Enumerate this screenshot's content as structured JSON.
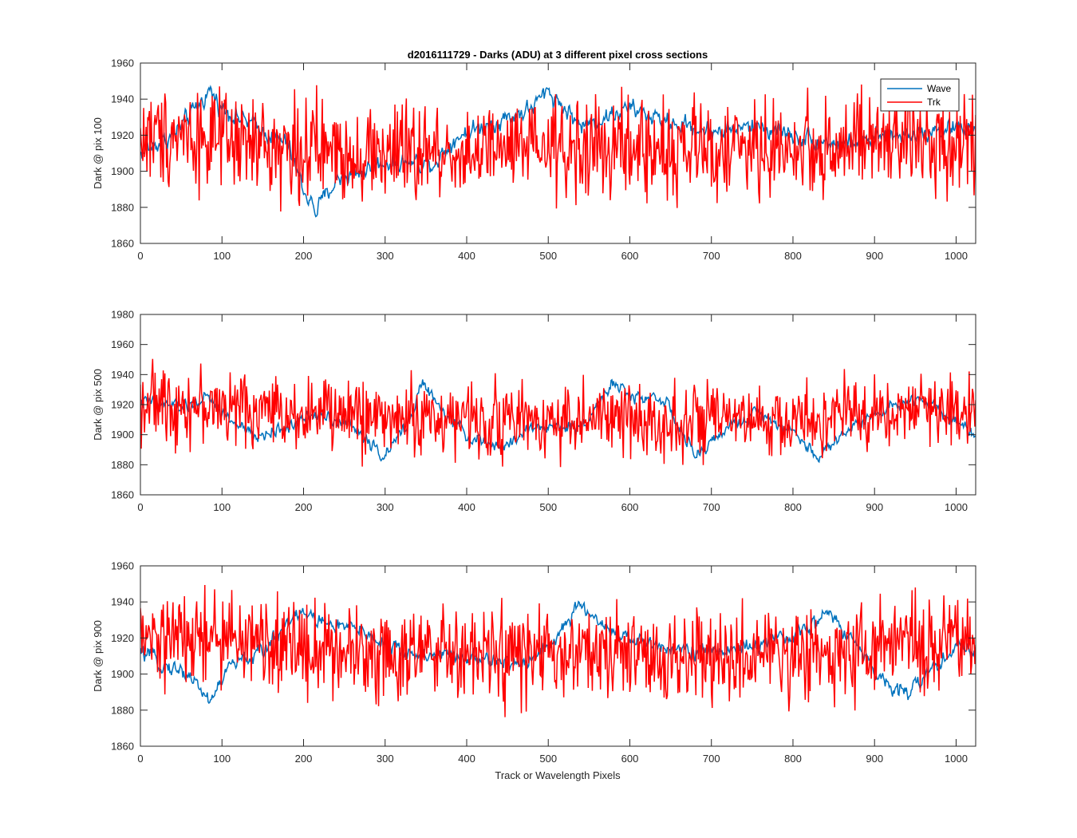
{
  "title": "d2016111729 - Darks (ADU) at 3 different pixel cross sections",
  "xlabel": "Track or Wavelength Pixels",
  "legend": {
    "location": "top-right",
    "entries": [
      {
        "name": "Wave",
        "color": "#0072BD"
      },
      {
        "name": "Trk",
        "color": "#FF0000"
      }
    ]
  },
  "chart_data": [
    {
      "type": "line",
      "ylabel": "Dark @ pix 100",
      "xlim": [
        0,
        1024
      ],
      "ylim": [
        1860,
        1960
      ],
      "xticks": [
        0,
        100,
        200,
        300,
        400,
        500,
        600,
        700,
        800,
        900,
        1000
      ],
      "yticks": [
        1860,
        1880,
        1900,
        1920,
        1940,
        1960
      ],
      "series_trend": {
        "Wave": [
          [
            0,
            1910
          ],
          [
            40,
            1920
          ],
          [
            60,
            1930
          ],
          [
            85,
            1945
          ],
          [
            100,
            1935
          ],
          [
            140,
            1925
          ],
          [
            180,
            1915
          ],
          [
            200,
            1890
          ],
          [
            215,
            1878
          ],
          [
            240,
            1895
          ],
          [
            300,
            1905
          ],
          [
            360,
            1905
          ],
          [
            390,
            1920
          ],
          [
            440,
            1928
          ],
          [
            480,
            1935
          ],
          [
            500,
            1945
          ],
          [
            520,
            1935
          ],
          [
            540,
            1925
          ],
          [
            600,
            1935
          ],
          [
            640,
            1928
          ],
          [
            700,
            1922
          ],
          [
            760,
            1925
          ],
          [
            820,
            1918
          ],
          [
            860,
            1915
          ],
          [
            900,
            1918
          ],
          [
            960,
            1922
          ],
          [
            1024,
            1925
          ]
        ],
        "Trk": [
          [
            0,
            1918
          ],
          [
            50,
            1922
          ],
          [
            100,
            1915
          ],
          [
            200,
            1912
          ],
          [
            300,
            1910
          ],
          [
            400,
            1910
          ],
          [
            500,
            1912
          ],
          [
            600,
            1912
          ],
          [
            700,
            1912
          ],
          [
            800,
            1912
          ],
          [
            900,
            1915
          ],
          [
            1024,
            1918
          ]
        ]
      },
      "noise": {
        "Wave": 6,
        "Trk": 17
      },
      "show_legend": true
    },
    {
      "type": "line",
      "ylabel": "Dark @ pix 500",
      "xlim": [
        0,
        1024
      ],
      "ylim": [
        1860,
        1980
      ],
      "xticks": [
        0,
        100,
        200,
        300,
        400,
        500,
        600,
        700,
        800,
        900,
        1000
      ],
      "yticks": [
        1860,
        1880,
        1900,
        1920,
        1940,
        1960,
        1980
      ],
      "series_trend": {
        "Wave": [
          [
            0,
            1922
          ],
          [
            60,
            1918
          ],
          [
            80,
            1925
          ],
          [
            110,
            1910
          ],
          [
            140,
            1898
          ],
          [
            180,
            1905
          ],
          [
            220,
            1915
          ],
          [
            260,
            1905
          ],
          [
            300,
            1885
          ],
          [
            330,
            1910
          ],
          [
            345,
            1935
          ],
          [
            370,
            1915
          ],
          [
            400,
            1900
          ],
          [
            440,
            1890
          ],
          [
            480,
            1905
          ],
          [
            540,
            1905
          ],
          [
            580,
            1935
          ],
          [
            600,
            1925
          ],
          [
            640,
            1925
          ],
          [
            680,
            1885
          ],
          [
            720,
            1905
          ],
          [
            760,
            1915
          ],
          [
            800,
            1902
          ],
          [
            830,
            1885
          ],
          [
            860,
            1900
          ],
          [
            900,
            1915
          ],
          [
            960,
            1925
          ],
          [
            1024,
            1900
          ]
        ],
        "Trk": [
          [
            0,
            1922
          ],
          [
            100,
            1918
          ],
          [
            200,
            1915
          ],
          [
            300,
            1912
          ],
          [
            400,
            1910
          ],
          [
            500,
            1910
          ],
          [
            600,
            1910
          ],
          [
            700,
            1908
          ],
          [
            800,
            1908
          ],
          [
            900,
            1915
          ],
          [
            1024,
            1918
          ]
        ]
      },
      "noise": {
        "Wave": 5,
        "Trk": 15
      },
      "show_legend": false
    },
    {
      "type": "line",
      "ylabel": "Dark @ pix 900",
      "xlim": [
        0,
        1024
      ],
      "ylim": [
        1860,
        1960
      ],
      "xticks": [
        0,
        100,
        200,
        300,
        400,
        500,
        600,
        700,
        800,
        900,
        1000
      ],
      "yticks": [
        1860,
        1880,
        1900,
        1920,
        1940,
        1960
      ],
      "series_trend": {
        "Wave": [
          [
            0,
            1912
          ],
          [
            30,
            1905
          ],
          [
            60,
            1900
          ],
          [
            85,
            1885
          ],
          [
            110,
            1905
          ],
          [
            150,
            1912
          ],
          [
            190,
            1935
          ],
          [
            230,
            1928
          ],
          [
            280,
            1922
          ],
          [
            320,
            1912
          ],
          [
            380,
            1910
          ],
          [
            420,
            1908
          ],
          [
            460,
            1905
          ],
          [
            500,
            1915
          ],
          [
            540,
            1938
          ],
          [
            560,
            1930
          ],
          [
            600,
            1918
          ],
          [
            660,
            1915
          ],
          [
            700,
            1912
          ],
          [
            780,
            1918
          ],
          [
            820,
            1925
          ],
          [
            840,
            1935
          ],
          [
            880,
            1915
          ],
          [
            900,
            1900
          ],
          [
            940,
            1890
          ],
          [
            960,
            1898
          ],
          [
            1000,
            1915
          ],
          [
            1024,
            1912
          ]
        ],
        "Trk": [
          [
            0,
            1918
          ],
          [
            100,
            1920
          ],
          [
            200,
            1915
          ],
          [
            300,
            1912
          ],
          [
            400,
            1910
          ],
          [
            500,
            1910
          ],
          [
            600,
            1910
          ],
          [
            700,
            1908
          ],
          [
            800,
            1910
          ],
          [
            900,
            1915
          ],
          [
            1024,
            1918
          ]
        ]
      },
      "noise": {
        "Wave": 5,
        "Trk": 16
      },
      "show_legend": false
    }
  ]
}
